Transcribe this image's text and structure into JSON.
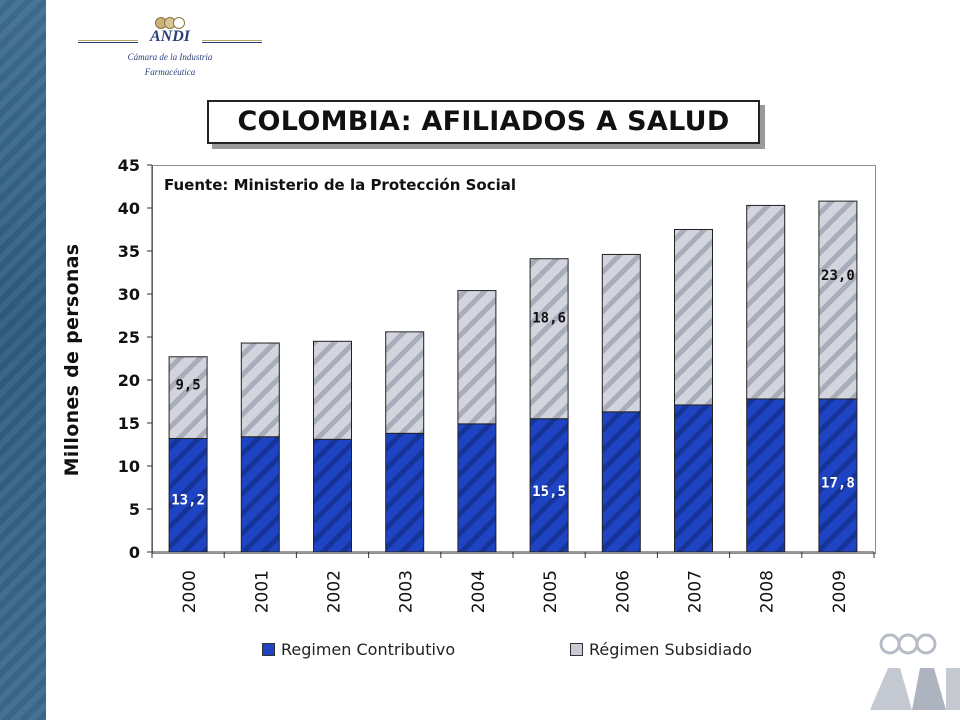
{
  "logo": {
    "name": "ANDI",
    "subtitle_line1": "Cámara de la Industria",
    "subtitle_line2": "Farmacéutica"
  },
  "chart_data": {
    "type": "bar",
    "stacked": true,
    "title": "COLOMBIA: AFILIADOS A SALUD",
    "source_note": "Fuente: Ministerio de la Protección Social",
    "xlabel": "",
    "ylabel": "Millones de personas",
    "ylim": [
      0,
      45
    ],
    "yticks": [
      0,
      5,
      10,
      15,
      20,
      25,
      30,
      35,
      40,
      45
    ],
    "categories": [
      "2000",
      "2001",
      "2002",
      "2003",
      "2004",
      "2005",
      "2006",
      "2007",
      "2008",
      "2009"
    ],
    "series": [
      {
        "name": "Regimen Contributivo",
        "color": "#1a3fbf",
        "values": [
          13.2,
          13.4,
          13.1,
          13.8,
          14.9,
          15.5,
          16.3,
          17.1,
          17.8,
          17.8
        ],
        "data_labels": [
          "13,2",
          "",
          "",
          "",
          "",
          "15,5",
          "",
          "",
          "",
          "17,8"
        ]
      },
      {
        "name": "Régimen Subsidiado",
        "color": "#c8cbd6",
        "values": [
          9.5,
          10.9,
          11.4,
          11.8,
          15.5,
          18.6,
          18.3,
          20.4,
          22.5,
          23.0
        ],
        "data_labels": [
          "9,5",
          "",
          "",
          "",
          "",
          "18,6",
          "",
          "",
          "",
          "23,0"
        ]
      }
    ],
    "grid": false,
    "legend_position": "bottom"
  }
}
